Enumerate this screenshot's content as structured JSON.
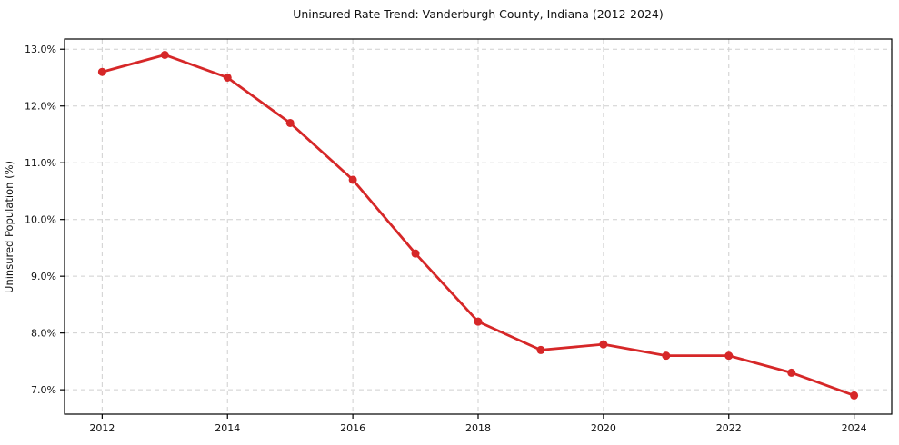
{
  "chart_data": {
    "type": "line",
    "title": "Uninsured Rate Trend: Vanderburgh County, Indiana (2012-2024)",
    "xlabel": "",
    "ylabel": "Uninsured Population (%)",
    "x": [
      2012,
      2013,
      2014,
      2015,
      2016,
      2017,
      2018,
      2019,
      2020,
      2021,
      2022,
      2023,
      2024
    ],
    "values": [
      12.6,
      12.9,
      12.5,
      11.7,
      10.7,
      9.4,
      8.2,
      7.7,
      7.8,
      7.6,
      7.6,
      7.3,
      6.9
    ],
    "xlim": [
      2011.4,
      2024.6
    ],
    "ylim": [
      6.57,
      13.18
    ],
    "xticks": [
      2012,
      2014,
      2016,
      2018,
      2020,
      2022,
      2024
    ],
    "xtick_labels": [
      "2012",
      "2014",
      "2016",
      "2018",
      "2020",
      "2022",
      "2024"
    ],
    "yticks": [
      7,
      8,
      9,
      10,
      11,
      12,
      13
    ],
    "ytick_labels": [
      "7.0%",
      "8.0%",
      "9.0%",
      "10.0%",
      "11.0%",
      "12.0%",
      "13.0%"
    ],
    "grid": true,
    "legend": "none",
    "line_color": "#d62728",
    "marker": "circle",
    "marker_radius": 4.5,
    "background_color": "#ffffff",
    "grid_color": "#cfcfcf",
    "frame_color": "#000000"
  }
}
